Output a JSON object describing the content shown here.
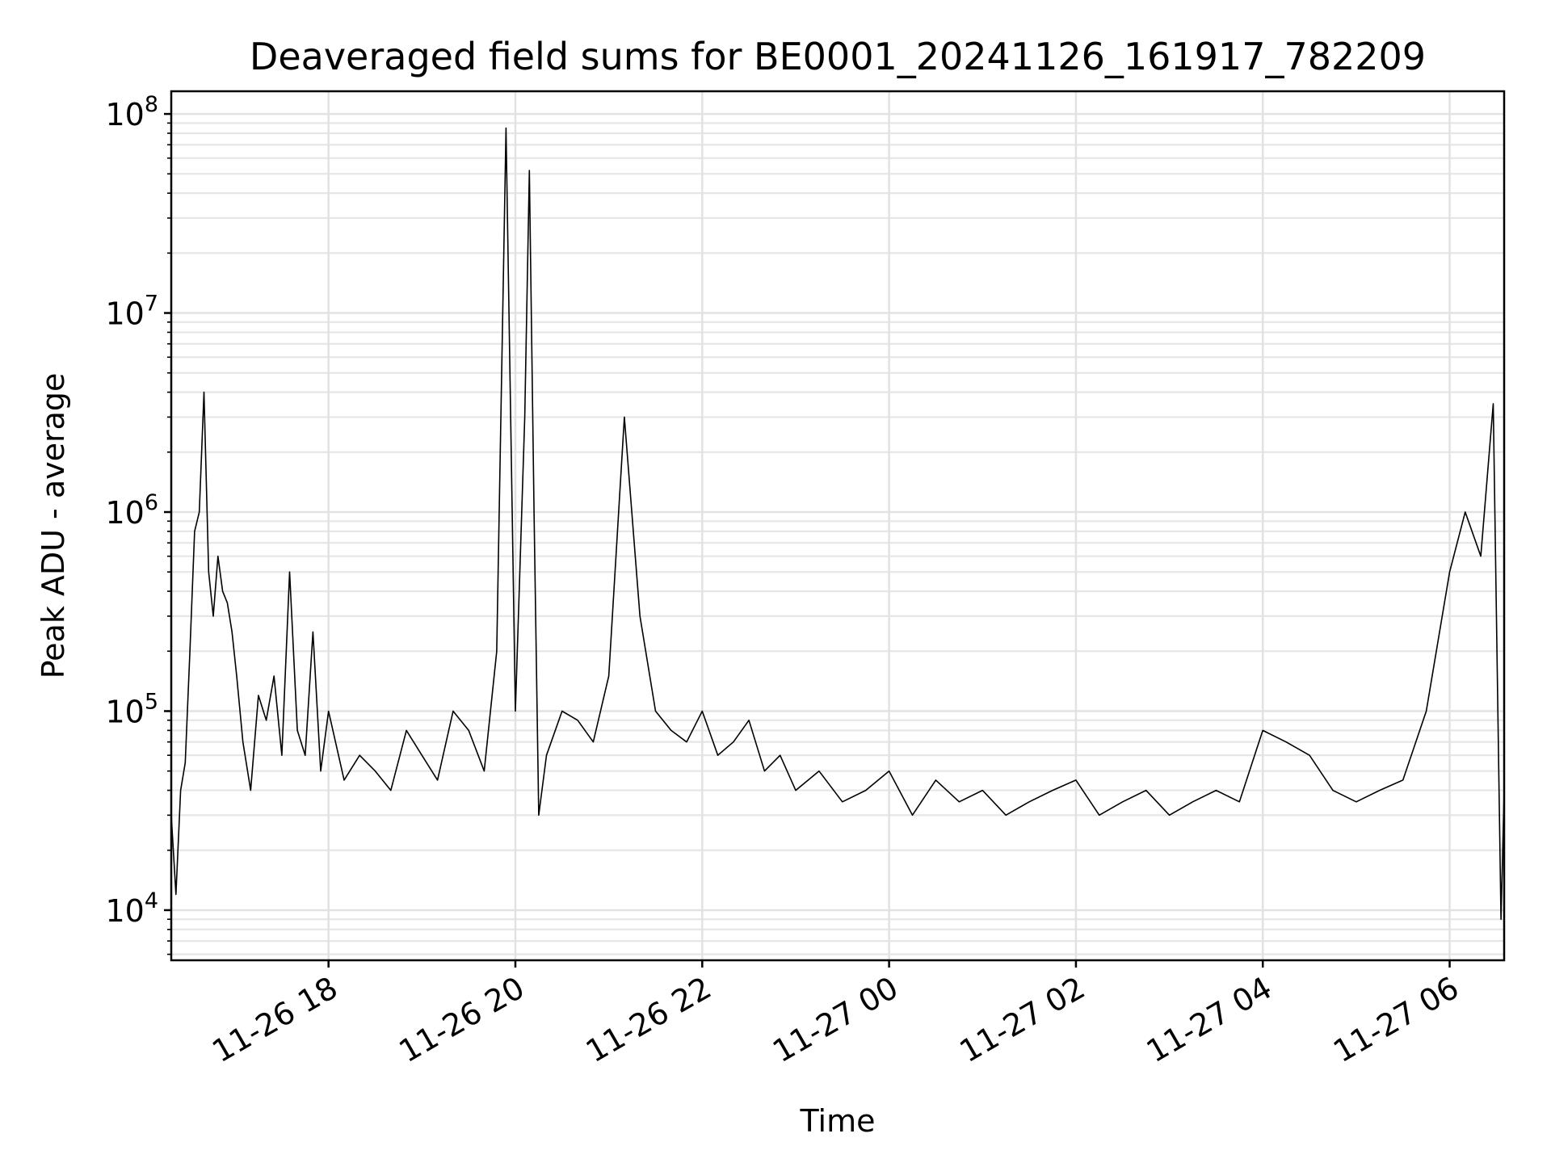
{
  "chart_data": {
    "type": "line",
    "title": "Deaveraged field sums for BE0001_20241126_161917_782209",
    "xlabel": "Time",
    "ylabel": "Peak ADU - average",
    "yscale": "log",
    "ylim": [
      5600,
      130000000
    ],
    "xlim": [
      "2024-11-26T16:19",
      "2024-11-27T06:35"
    ],
    "grid": true,
    "grid_minor_y": true,
    "line_color": "#000000",
    "x_ticks": [
      {
        "t": "2024-11-26T18:00",
        "label": "11-26 18"
      },
      {
        "t": "2024-11-26T20:00",
        "label": "11-26 20"
      },
      {
        "t": "2024-11-26T22:00",
        "label": "11-26 22"
      },
      {
        "t": "2024-11-27T00:00",
        "label": "11-27 00"
      },
      {
        "t": "2024-11-27T02:00",
        "label": "11-27 02"
      },
      {
        "t": "2024-11-27T04:00",
        "label": "11-27 04"
      },
      {
        "t": "2024-11-27T06:00",
        "label": "11-27 06"
      }
    ],
    "y_ticks": [
      {
        "value": 10000,
        "base": "10",
        "exp": "4"
      },
      {
        "value": 100000,
        "base": "10",
        "exp": "5"
      },
      {
        "value": 1000000,
        "base": "10",
        "exp": "6"
      },
      {
        "value": 10000000,
        "base": "10",
        "exp": "7"
      },
      {
        "value": 100000000,
        "base": "10",
        "exp": "8"
      }
    ],
    "series": [
      {
        "x": [
          "2024-11-26T16:19",
          "2024-11-26T16:22",
          "2024-11-26T16:25",
          "2024-11-26T16:28",
          "2024-11-26T16:31",
          "2024-11-26T16:34",
          "2024-11-26T16:37",
          "2024-11-26T16:40",
          "2024-11-26T16:43",
          "2024-11-26T16:46",
          "2024-11-26T16:49",
          "2024-11-26T16:52",
          "2024-11-26T16:55",
          "2024-11-26T16:58",
          "2024-11-26T17:01",
          "2024-11-26T17:05",
          "2024-11-26T17:10",
          "2024-11-26T17:15",
          "2024-11-26T17:20",
          "2024-11-26T17:25",
          "2024-11-26T17:30",
          "2024-11-26T17:35",
          "2024-11-26T17:40",
          "2024-11-26T17:45",
          "2024-11-26T17:50",
          "2024-11-26T17:55",
          "2024-11-26T18:00",
          "2024-11-26T18:10",
          "2024-11-26T18:20",
          "2024-11-26T18:30",
          "2024-11-26T18:40",
          "2024-11-26T18:50",
          "2024-11-26T19:00",
          "2024-11-26T19:10",
          "2024-11-26T19:20",
          "2024-11-26T19:30",
          "2024-11-26T19:40",
          "2024-11-26T19:48",
          "2024-11-26T19:54",
          "2024-11-26T20:00",
          "2024-11-26T20:06",
          "2024-11-26T20:09",
          "2024-11-26T20:12",
          "2024-11-26T20:15",
          "2024-11-26T20:20",
          "2024-11-26T20:30",
          "2024-11-26T20:40",
          "2024-11-26T20:50",
          "2024-11-26T21:00",
          "2024-11-26T21:10",
          "2024-11-26T21:20",
          "2024-11-26T21:30",
          "2024-11-26T21:40",
          "2024-11-26T21:50",
          "2024-11-26T22:00",
          "2024-11-26T22:10",
          "2024-11-26T22:20",
          "2024-11-26T22:30",
          "2024-11-26T22:40",
          "2024-11-26T22:50",
          "2024-11-26T23:00",
          "2024-11-26T23:15",
          "2024-11-26T23:30",
          "2024-11-26T23:45",
          "2024-11-27T00:00",
          "2024-11-27T00:15",
          "2024-11-27T00:30",
          "2024-11-27T00:45",
          "2024-11-27T01:00",
          "2024-11-27T01:15",
          "2024-11-27T01:30",
          "2024-11-27T01:45",
          "2024-11-27T02:00",
          "2024-11-27T02:15",
          "2024-11-27T02:30",
          "2024-11-27T02:45",
          "2024-11-27T03:00",
          "2024-11-27T03:15",
          "2024-11-27T03:30",
          "2024-11-27T03:45",
          "2024-11-27T04:00",
          "2024-11-27T04:15",
          "2024-11-27T04:30",
          "2024-11-27T04:45",
          "2024-11-27T05:00",
          "2024-11-27T05:15",
          "2024-11-27T05:30",
          "2024-11-27T05:45",
          "2024-11-27T06:00",
          "2024-11-27T06:10",
          "2024-11-27T06:20",
          "2024-11-27T06:28",
          "2024-11-27T06:33",
          "2024-11-27T06:35"
        ],
        "y": [
          30000,
          12000,
          40000,
          55000,
          200000,
          800000,
          1000000,
          4000000,
          500000,
          300000,
          600000,
          400000,
          350000,
          250000,
          150000,
          70000,
          40000,
          120000,
          90000,
          150000,
          60000,
          500000,
          80000,
          60000,
          250000,
          50000,
          100000,
          45000,
          60000,
          50000,
          40000,
          80000,
          60000,
          45000,
          100000,
          80000,
          50000,
          200000,
          85000000,
          100000,
          3000000,
          52000000,
          1000000,
          30000,
          60000,
          100000,
          90000,
          70000,
          150000,
          3000000,
          300000,
          100000,
          80000,
          70000,
          100000,
          60000,
          70000,
          90000,
          50000,
          60000,
          40000,
          50000,
          35000,
          40000,
          50000,
          30000,
          45000,
          35000,
          40000,
          30000,
          35000,
          40000,
          45000,
          30000,
          35000,
          40000,
          30000,
          35000,
          40000,
          35000,
          80000,
          70000,
          60000,
          40000,
          35000,
          40000,
          45000,
          100000,
          500000,
          1000000,
          600000,
          3500000,
          9000,
          40000
        ]
      }
    ]
  }
}
